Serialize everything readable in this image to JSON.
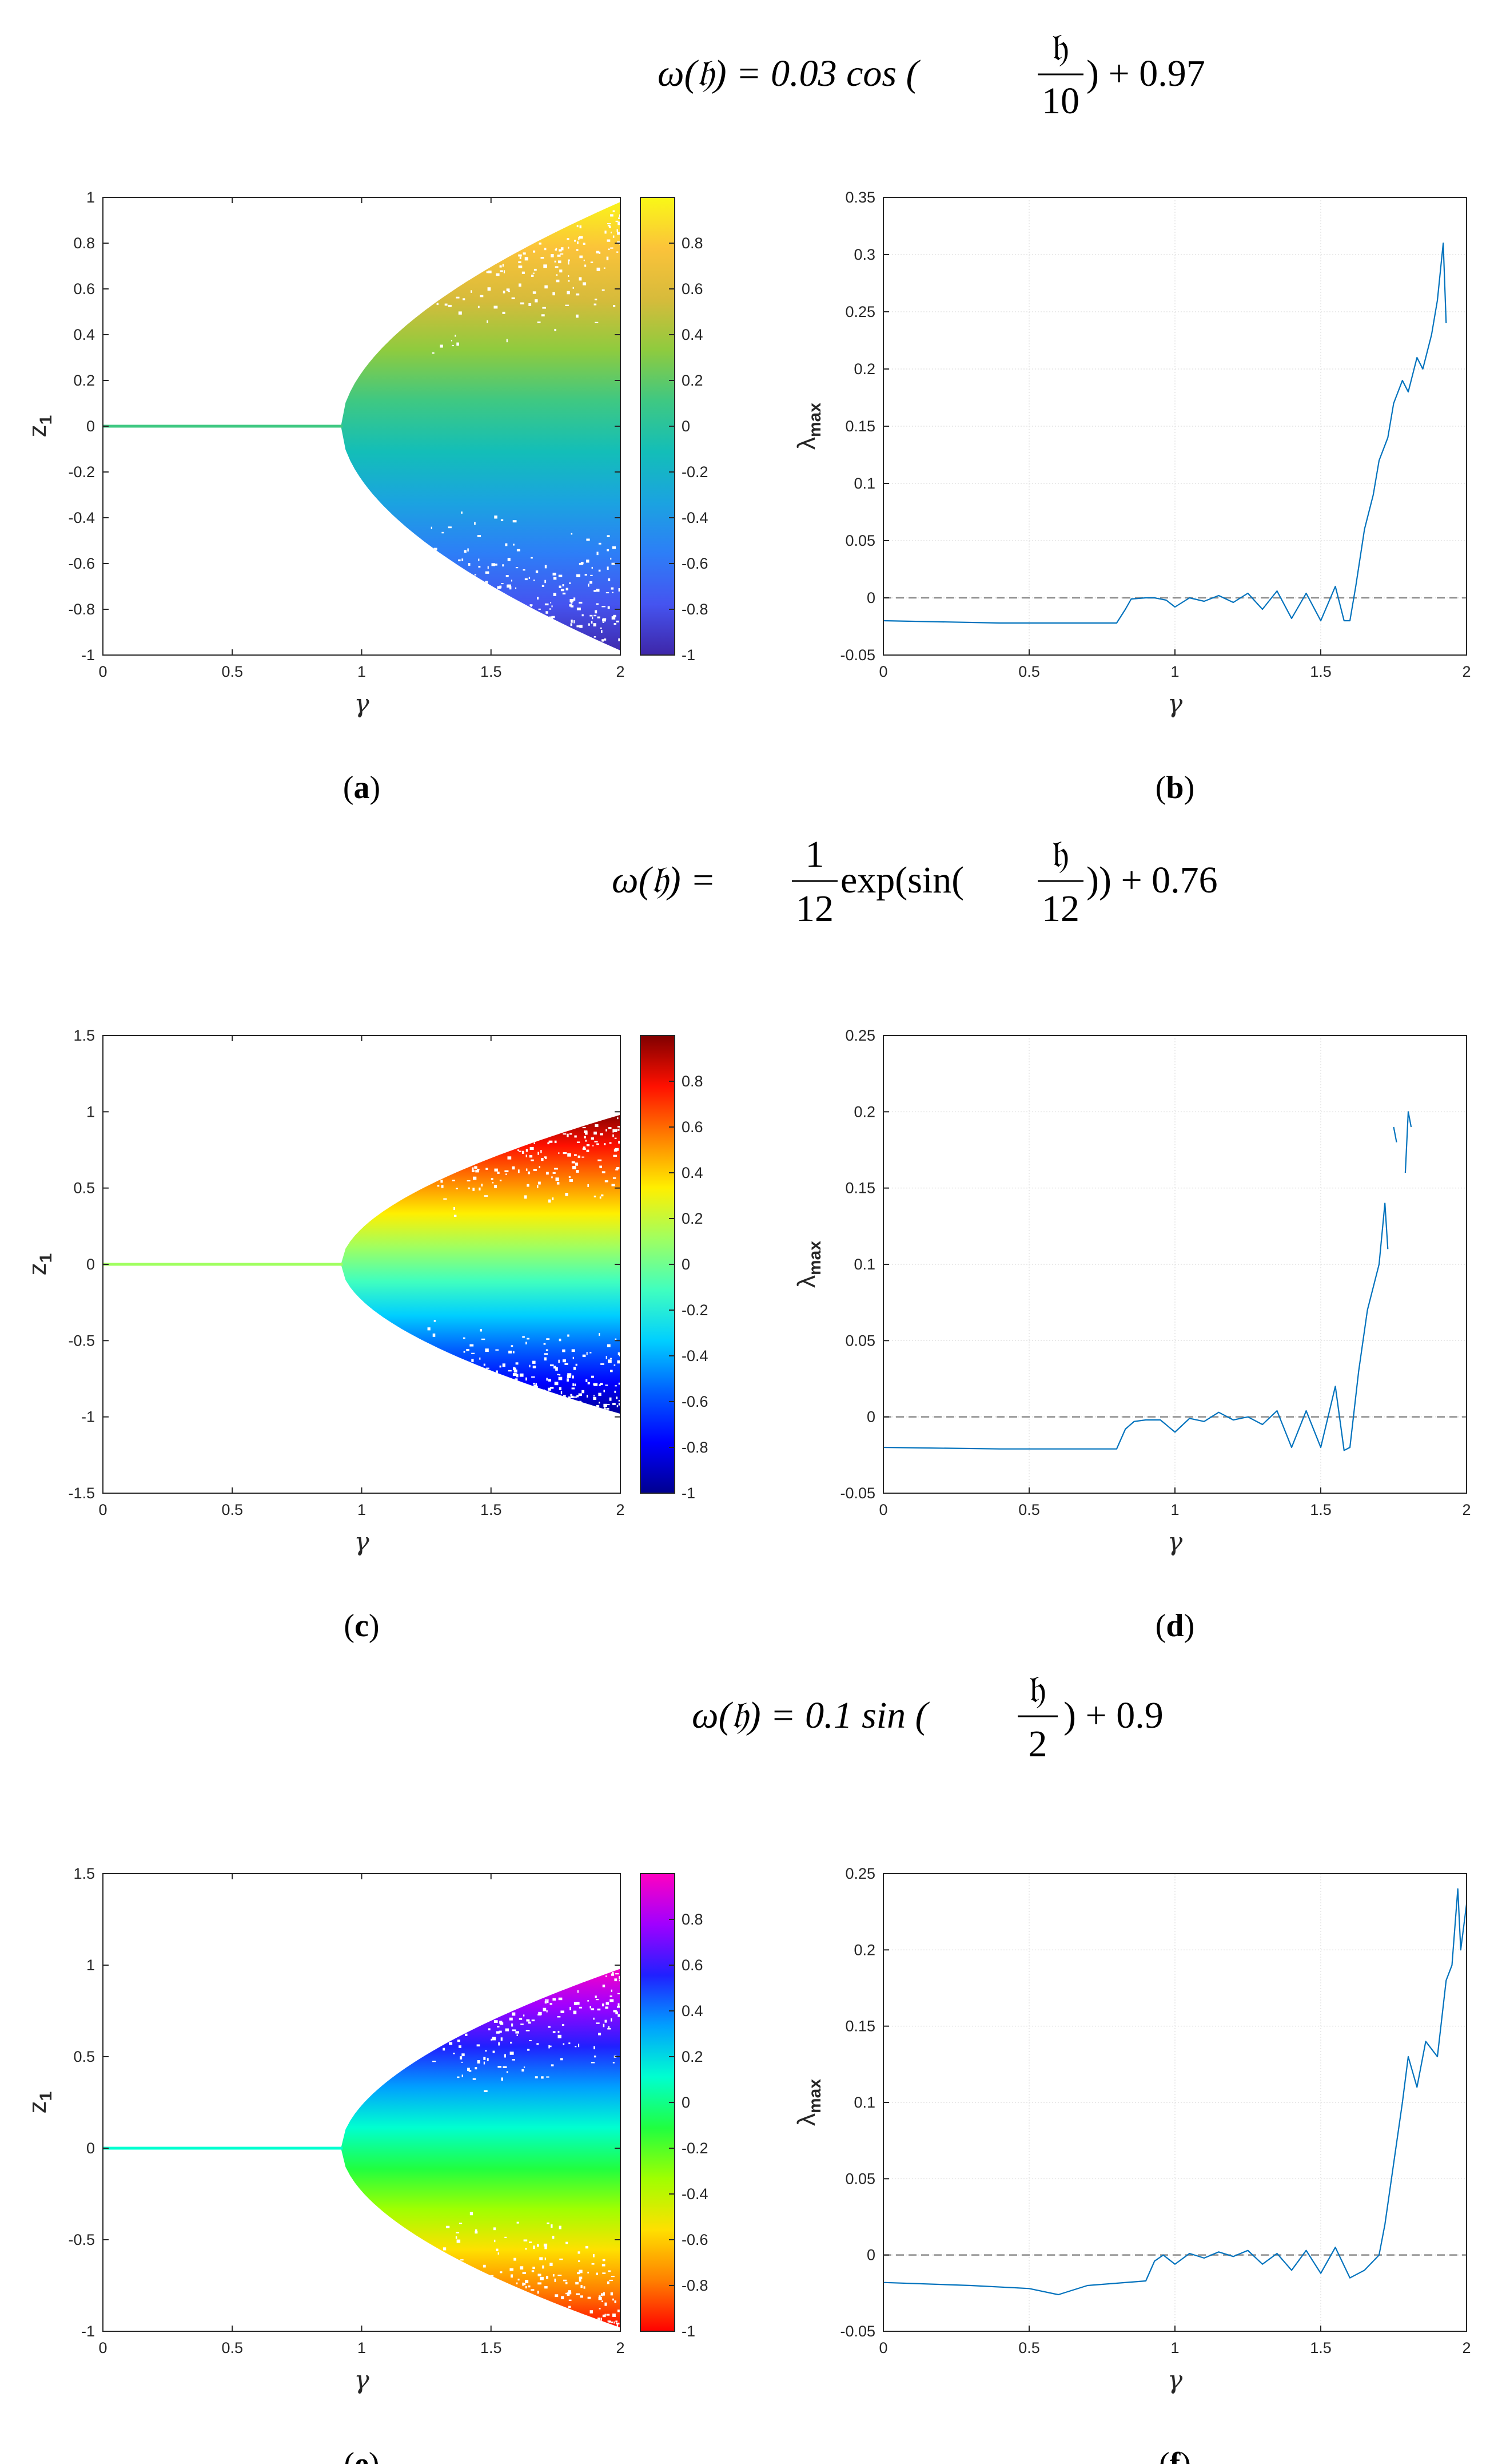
{
  "figure": {
    "rows": [
      {
        "formula": {
          "lhs": "ω(𝔥) = 0.03 cos (",
          "num": "𝔥",
          "den": "10",
          "rhs": ") + 0.97"
        },
        "panels": [
          {
            "caption_label": "a",
            "chart_data": {
              "type": "scatter",
              "subtype": "bifurcation",
              "xlabel": "γ",
              "ylabel": "z",
              "ylabel_sub": "1",
              "xlim": [
                0,
                2
              ],
              "ylim": [
                -1,
                1
              ],
              "xticks": [
                "0",
                "0.5",
                "1",
                "1.5",
                "2"
              ],
              "yticks": [
                "-1",
                "-0.8",
                "-0.6",
                "-0.4",
                "-0.2",
                "0",
                "0.2",
                "0.4",
                "0.6",
                "0.8",
                "1"
              ],
              "bifurcation_point": 0.92,
              "envelope_at_x2": [
                -0.98,
                0.98
              ],
              "colormap": "parula",
              "colorbar": {
                "ticks": [
                  "-1",
                  "-0.8",
                  "-0.6",
                  "-0.4",
                  "-0.2",
                  "0",
                  "0.2",
                  "0.4",
                  "0.6",
                  "0.8"
                ],
                "range": [
                  -1,
                  1
                ],
                "colors": [
                  "#3e26a8",
                  "#4554f0",
                  "#2d7ef7",
                  "#1ba3e0",
                  "#13beb8",
                  "#3fc882",
                  "#8fcb3e",
                  "#d7bb3b",
                  "#fbc33a",
                  "#f9f817"
                ]
              }
            }
          },
          {
            "caption_label": "b",
            "chart_data": {
              "type": "line",
              "xlabel": "γ",
              "ylabel": "λ",
              "ylabel_sub": "max",
              "xlim": [
                0,
                2
              ],
              "ylim": [
                -0.05,
                0.35
              ],
              "xticks": [
                "0",
                "0.5",
                "1",
                "1.5",
                "2"
              ],
              "yticks": [
                "-0.05",
                "0",
                "0.05",
                "0.1",
                "0.15",
                "0.2",
                "0.25",
                "0.3",
                "0.35"
              ],
              "grid": true,
              "reference_line": 0,
              "series": [
                {
                  "color": "#0072bd",
                  "x": [
                    0,
                    0.4,
                    0.8,
                    0.83,
                    0.85,
                    0.9,
                    0.93,
                    0.97,
                    1.0,
                    1.05,
                    1.1,
                    1.15,
                    1.2,
                    1.25,
                    1.3,
                    1.35,
                    1.4,
                    1.45,
                    1.5,
                    1.55,
                    1.58,
                    1.6,
                    1.62,
                    1.65,
                    1.68,
                    1.7,
                    1.73,
                    1.75,
                    1.78,
                    1.8,
                    1.83,
                    1.85,
                    1.88,
                    1.9,
                    1.92,
                    1.93
                  ],
                  "y": [
                    -0.02,
                    -0.022,
                    -0.022,
                    -0.01,
                    -0.001,
                    0.0,
                    0.0,
                    -0.002,
                    -0.008,
                    0.0,
                    -0.003,
                    0.002,
                    -0.004,
                    0.004,
                    -0.01,
                    0.006,
                    -0.018,
                    0.004,
                    -0.02,
                    0.01,
                    -0.02,
                    -0.02,
                    0.01,
                    0.06,
                    0.09,
                    0.12,
                    0.14,
                    0.17,
                    0.19,
                    0.18,
                    0.21,
                    0.2,
                    0.23,
                    0.26,
                    0.31,
                    0.24
                  ]
                }
              ]
            }
          }
        ]
      },
      {
        "formula": {
          "lhs": "ω(𝔥) = ",
          "num": "1",
          "den": "12",
          "mid": " exp(sin(",
          "num2": "𝔥",
          "den2": "12",
          "rhs": ")) + 0.76"
        },
        "panels": [
          {
            "caption_label": "c",
            "chart_data": {
              "type": "scatter",
              "subtype": "bifurcation",
              "xlabel": "γ",
              "ylabel": "z",
              "ylabel_sub": "1",
              "xlim": [
                0,
                2
              ],
              "ylim": [
                -1.5,
                1.5
              ],
              "xticks": [
                "0",
                "0.5",
                "1",
                "1.5",
                "2"
              ],
              "yticks": [
                "-1.5",
                "-1",
                "-0.5",
                "0",
                "0.5",
                "1",
                "1.5"
              ],
              "bifurcation_point": 0.92,
              "envelope_at_x2": [
                -0.98,
                0.98
              ],
              "colormap": "jet",
              "colorbar": {
                "ticks": [
                  "-1",
                  "-0.8",
                  "-0.6",
                  "-0.4",
                  "-0.2",
                  "0",
                  "0.2",
                  "0.4",
                  "0.6",
                  "0.8"
                ],
                "range": [
                  -1,
                  1
                ],
                "colors": [
                  "#00008f",
                  "#0000ff",
                  "#0060ff",
                  "#00cfff",
                  "#40ffbf",
                  "#a0ff60",
                  "#ffef00",
                  "#ff8000",
                  "#ff1000",
                  "#800000"
                ]
              }
            }
          },
          {
            "caption_label": "d",
            "chart_data": {
              "type": "line",
              "xlabel": "γ",
              "ylabel": "λ",
              "ylabel_sub": "max",
              "xlim": [
                0,
                2
              ],
              "ylim": [
                -0.05,
                0.25
              ],
              "xticks": [
                "0",
                "0.5",
                "1",
                "1.5",
                "2"
              ],
              "yticks": [
                "-0.05",
                "0",
                "0.05",
                "0.1",
                "0.15",
                "0.2",
                "0.25"
              ],
              "grid": true,
              "reference_line": 0,
              "series": [
                {
                  "color": "#0072bd",
                  "x": [
                    0,
                    0.4,
                    0.8,
                    0.83,
                    0.86,
                    0.9,
                    0.95,
                    1.0,
                    1.05,
                    1.1,
                    1.15,
                    1.2,
                    1.25,
                    1.3,
                    1.35,
                    1.4,
                    1.45,
                    1.5,
                    1.55,
                    1.58,
                    1.6,
                    1.63,
                    1.66,
                    1.7,
                    1.72,
                    1.73
                  ],
                  "y": [
                    -0.02,
                    -0.021,
                    -0.021,
                    -0.008,
                    -0.003,
                    -0.002,
                    -0.002,
                    -0.01,
                    -0.001,
                    -0.003,
                    0.003,
                    -0.002,
                    0.0,
                    -0.005,
                    0.004,
                    -0.02,
                    0.004,
                    -0.02,
                    0.02,
                    -0.022,
                    -0.02,
                    0.03,
                    0.07,
                    0.1,
                    0.14,
                    0.11
                  ]
                },
                {
                  "color": "#0072bd",
                  "x": [
                    1.75,
                    1.76
                  ],
                  "y": [
                    0.19,
                    0.18
                  ]
                },
                {
                  "color": "#0072bd",
                  "x": [
                    1.79,
                    1.8,
                    1.81
                  ],
                  "y": [
                    0.16,
                    0.2,
                    0.19
                  ]
                }
              ]
            }
          }
        ]
      },
      {
        "formula": {
          "lhs": "ω(𝔥) = 0.1 sin (",
          "num": "𝔥",
          "den": "2",
          "rhs": ") + 0.9"
        },
        "panels": [
          {
            "caption_label": "e",
            "chart_data": {
              "type": "scatter",
              "subtype": "bifurcation",
              "xlabel": "γ",
              "ylabel": "z",
              "ylabel_sub": "1",
              "xlim": [
                0,
                2
              ],
              "ylim": [
                -1,
                1.5
              ],
              "xticks": [
                "0",
                "0.5",
                "1",
                "1.5",
                "2"
              ],
              "yticks": [
                "-1",
                "-0.5",
                "0",
                "0.5",
                "1",
                "1.5"
              ],
              "bifurcation_point": 0.92,
              "envelope_at_x2": [
                -0.98,
                0.98
              ],
              "colormap": "hsv (reversed)",
              "colorbar": {
                "ticks": [
                  "-1",
                  "-0.8",
                  "-0.6",
                  "-0.4",
                  "-0.2",
                  "0",
                  "0.2",
                  "0.4",
                  "0.6",
                  "0.8"
                ],
                "range": [
                  -1,
                  1
                ],
                "colors": [
                  "#ff0000",
                  "#ff8000",
                  "#ffe000",
                  "#a0ff00",
                  "#20ff40",
                  "#00ffd0",
                  "#00a0ff",
                  "#2020ff",
                  "#a000ff",
                  "#ff00c0"
                ]
              }
            }
          },
          {
            "caption_label": "f",
            "chart_data": {
              "type": "line",
              "xlabel": "γ",
              "ylabel": "λ",
              "ylabel_sub": "max",
              "xlim": [
                0,
                2
              ],
              "ylim": [
                -0.05,
                0.25
              ],
              "xticks": [
                "0",
                "0.5",
                "1",
                "1.5",
                "2"
              ],
              "yticks": [
                "-0.05",
                "0",
                "0.05",
                "0.1",
                "0.15",
                "0.2",
                "0.25"
              ],
              "grid": true,
              "reference_line": 0,
              "series": [
                {
                  "color": "#0072bd",
                  "x": [
                    0,
                    0.3,
                    0.5,
                    0.6,
                    0.7,
                    0.9,
                    0.93,
                    0.96,
                    1.0,
                    1.05,
                    1.1,
                    1.15,
                    1.2,
                    1.25,
                    1.3,
                    1.35,
                    1.4,
                    1.45,
                    1.5,
                    1.55,
                    1.6,
                    1.65,
                    1.7,
                    1.72,
                    1.75,
                    1.78,
                    1.8,
                    1.83,
                    1.86,
                    1.9,
                    1.93,
                    1.95,
                    1.97,
                    1.98,
                    2.0
                  ],
                  "y": [
                    -0.018,
                    -0.02,
                    -0.022,
                    -0.026,
                    -0.02,
                    -0.017,
                    -0.004,
                    0.0,
                    -0.006,
                    0.001,
                    -0.002,
                    0.002,
                    -0.001,
                    0.003,
                    -0.006,
                    0.001,
                    -0.01,
                    0.003,
                    -0.012,
                    0.005,
                    -0.015,
                    -0.01,
                    0.0,
                    0.02,
                    0.06,
                    0.1,
                    0.13,
                    0.11,
                    0.14,
                    0.13,
                    0.18,
                    0.19,
                    0.24,
                    0.2,
                    0.23
                  ]
                }
              ]
            }
          }
        ]
      }
    ]
  }
}
